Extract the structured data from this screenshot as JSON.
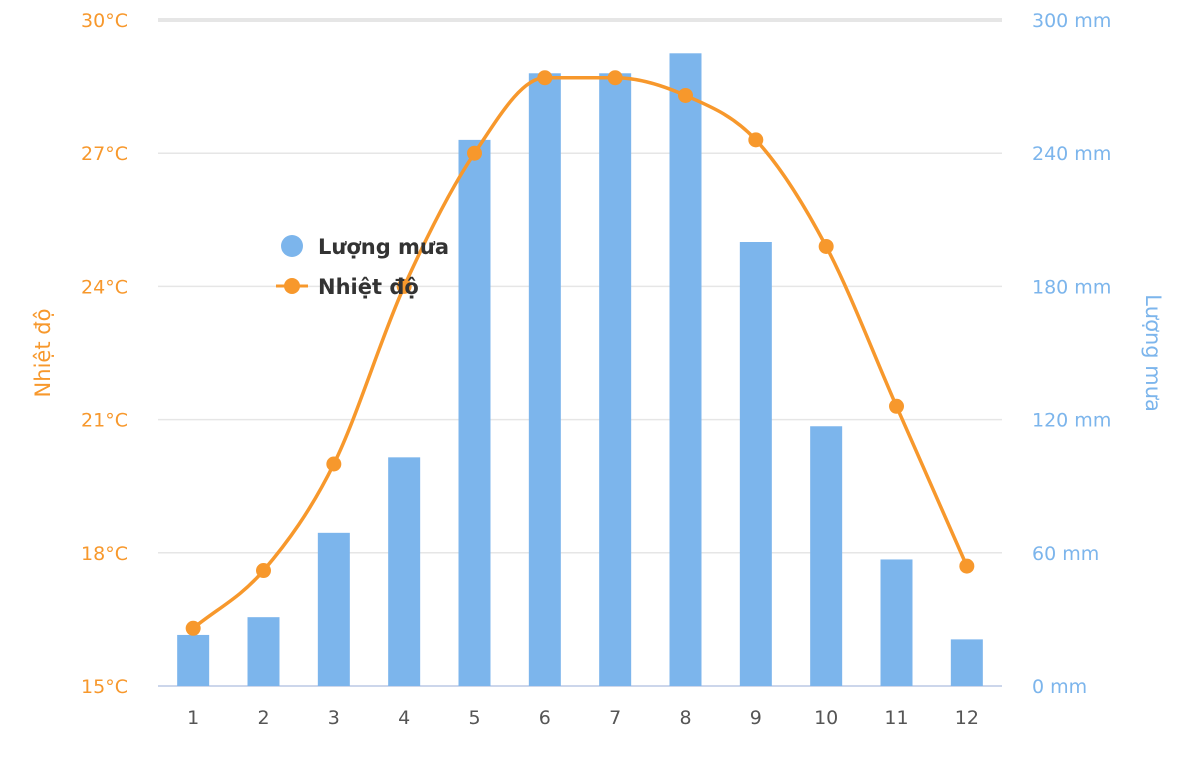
{
  "chart_data": {
    "type": "bar+line",
    "categories": [
      "1",
      "2",
      "3",
      "4",
      "5",
      "6",
      "7",
      "8",
      "9",
      "10",
      "11",
      "12"
    ],
    "series": [
      {
        "name": "Lượng mưa",
        "type": "bar",
        "axis": "right",
        "values": [
          23,
          31,
          69,
          103,
          246,
          276,
          276,
          285,
          200,
          117,
          57,
          21
        ]
      },
      {
        "name": "Nhiệt độ",
        "type": "line",
        "axis": "left",
        "values": [
          16.3,
          17.6,
          20.0,
          24.0,
          27.0,
          28.7,
          28.7,
          28.3,
          27.3,
          24.9,
          21.3,
          17.7
        ]
      }
    ],
    "y_left": {
      "title": "Nhiệt độ",
      "min": 15,
      "max": 30,
      "ticks": [
        15,
        18,
        21,
        24,
        27,
        30
      ],
      "tick_labels": [
        "15°C",
        "18°C",
        "21°C",
        "24°C",
        "27°C",
        "30°C"
      ]
    },
    "y_right": {
      "title": "Lượng mưa",
      "min": 0,
      "max": 300,
      "ticks": [
        0,
        60,
        120,
        180,
        240,
        300
      ],
      "tick_labels": [
        "0 mm",
        "60 mm",
        "120 mm",
        "180 mm",
        "240 mm",
        "300 mm"
      ]
    },
    "grid": true,
    "legend_position": "left-inside",
    "colors": {
      "bar": "#7cb5ec",
      "line": "#f7982c",
      "grid": "#e6e6e6",
      "axis": "#ccd6eb"
    }
  }
}
